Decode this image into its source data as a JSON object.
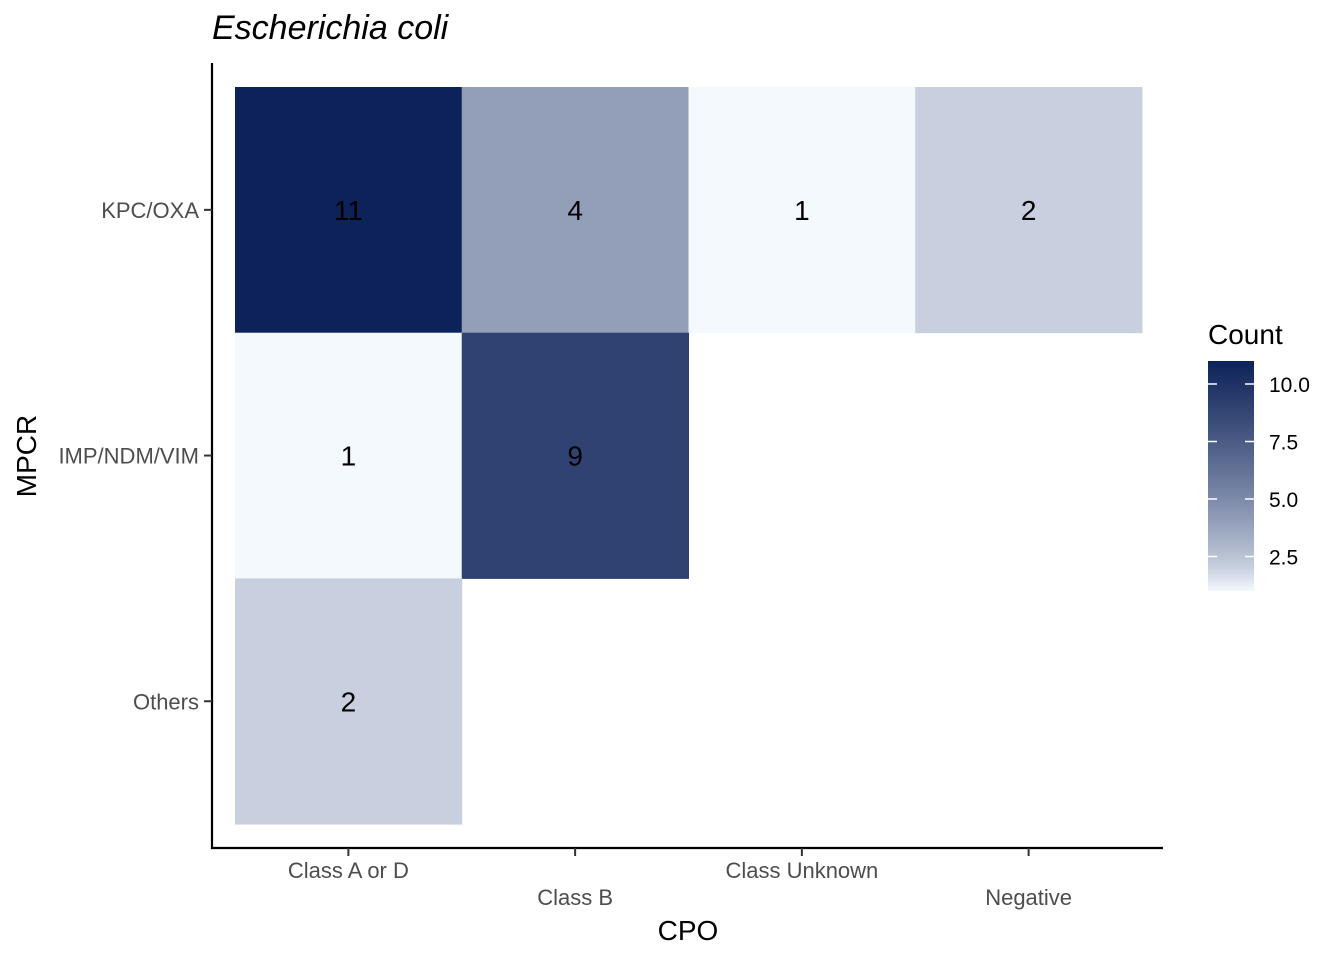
{
  "chart_data": {
    "type": "heatmap",
    "title": "Escherichia coli",
    "xlabel": "CPO",
    "ylabel": "MPCR",
    "x_categories": [
      "Class A or D",
      "Class B",
      "Class Unknown",
      "Negative"
    ],
    "y_categories": [
      "KPC/OXA",
      "IMP/NDM/VIM",
      "Others"
    ],
    "cells": [
      {
        "x": "Class A or D",
        "y": "KPC/OXA",
        "value": 11
      },
      {
        "x": "Class B",
        "y": "KPC/OXA",
        "value": 4
      },
      {
        "x": "Class Unknown",
        "y": "KPC/OXA",
        "value": 1
      },
      {
        "x": "Negative",
        "y": "KPC/OXA",
        "value": 2
      },
      {
        "x": "Class A or D",
        "y": "IMP/NDM/VIM",
        "value": 1
      },
      {
        "x": "Class B",
        "y": "IMP/NDM/VIM",
        "value": 9
      },
      {
        "x": "Class A or D",
        "y": "Others",
        "value": 2
      }
    ],
    "legend": {
      "title": "Count",
      "ticks": [
        "10.0",
        "7.5",
        "5.0",
        "2.5"
      ],
      "tick_values": [
        10.0,
        7.5,
        5.0,
        2.5
      ],
      "range": [
        1,
        11
      ],
      "placement": "right"
    },
    "colors": {
      "low": "#f4f9fe",
      "high": "#0d2259"
    },
    "grid": false
  }
}
